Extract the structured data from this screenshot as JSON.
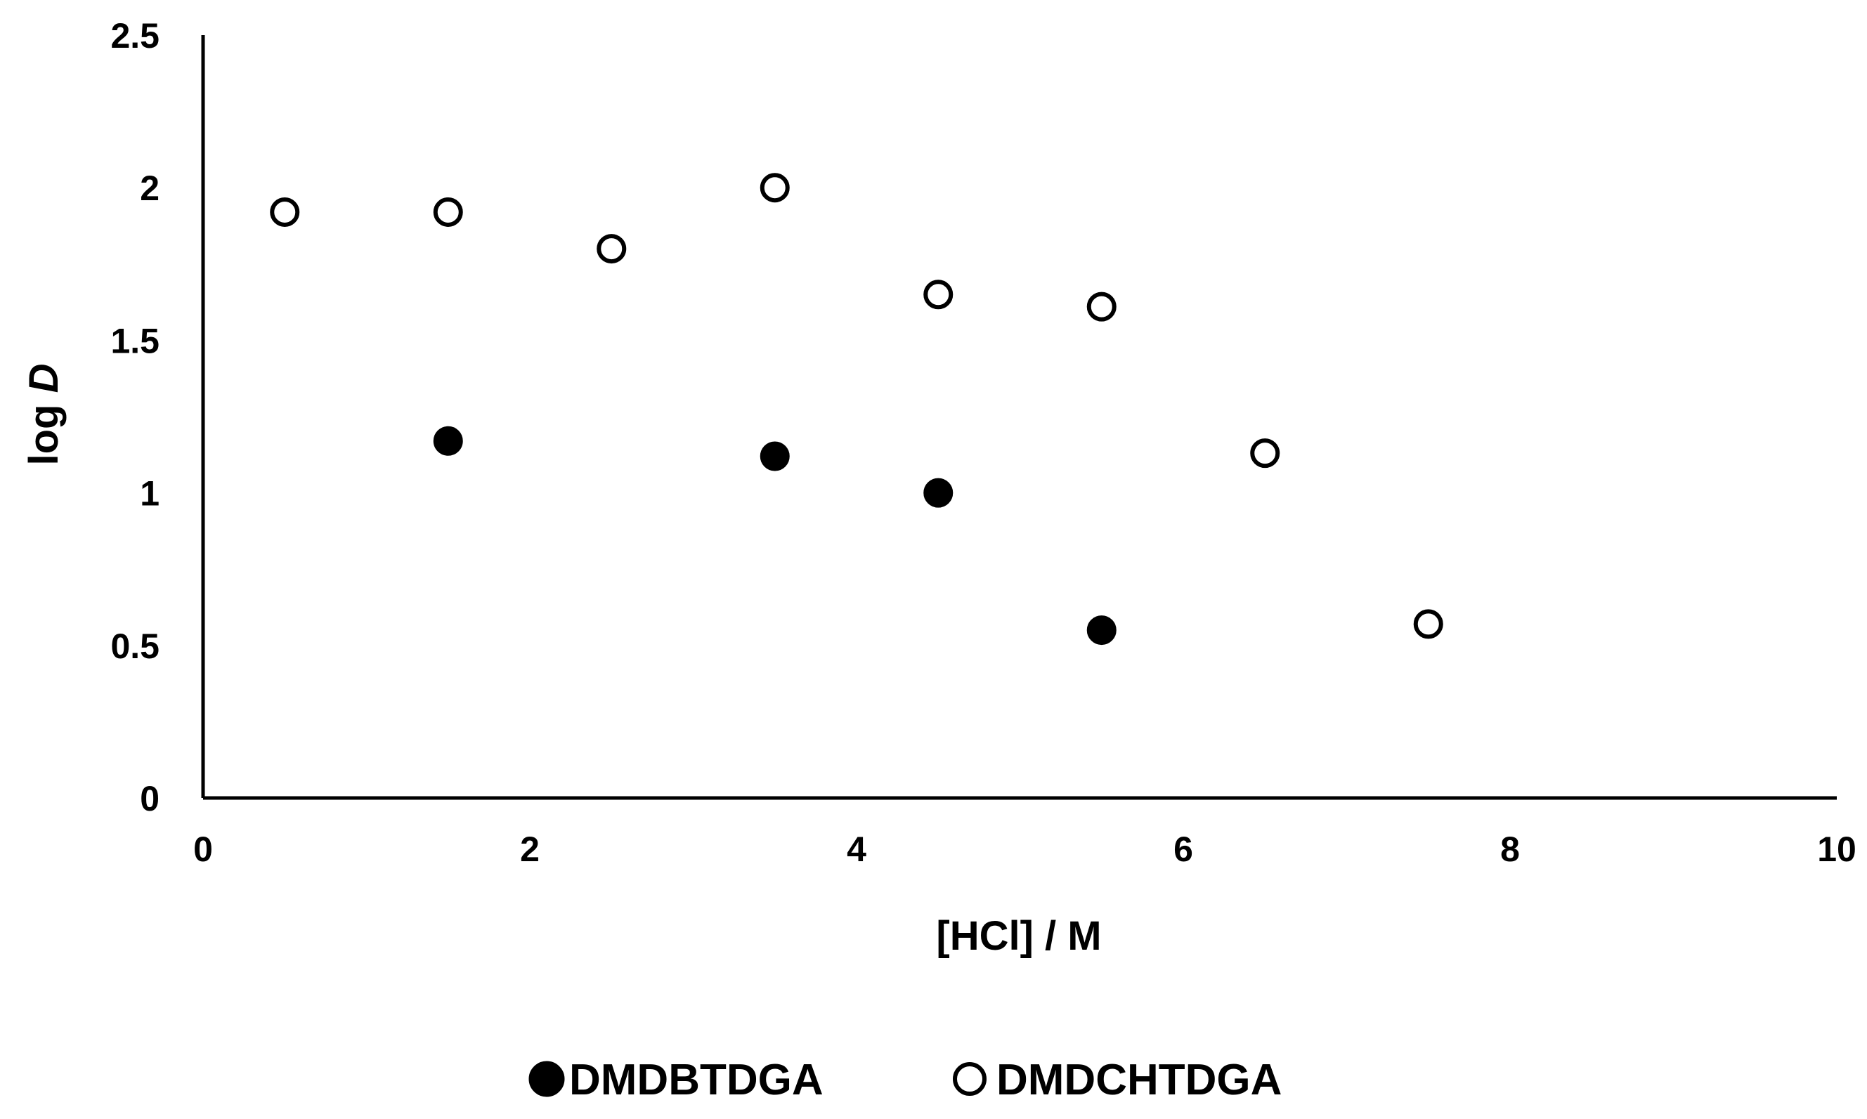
{
  "chart_data": {
    "type": "scatter",
    "title": "",
    "xlabel": "[HCl] / M",
    "ylabel_prefix": "log ",
    "ylabel_italic": "D",
    "xlim": [
      0,
      10
    ],
    "ylim": [
      0,
      2.5
    ],
    "xticks": [
      0,
      2,
      4,
      6,
      8,
      10
    ],
    "xtick_labels": [
      "0",
      "2",
      "4",
      "6",
      "8",
      "10"
    ],
    "yticks": [
      0,
      0.5,
      1,
      1.5,
      2,
      2.5
    ],
    "ytick_labels": [
      "0",
      "0.5",
      "1",
      "1.5",
      "2",
      "2.5"
    ],
    "grid": false,
    "legend_position": "bottom",
    "series": [
      {
        "name": "DMDBTDGA",
        "marker": "filled-circle",
        "color": "#000000",
        "x": [
          1.5,
          3.5,
          4.5,
          5.5
        ],
        "y": [
          1.17,
          1.12,
          1.0,
          0.55
        ]
      },
      {
        "name": "DMDCHTDGA",
        "marker": "open-circle",
        "color": "#000000",
        "x": [
          0.5,
          1.5,
          2.5,
          3.5,
          4.5,
          5.5,
          6.5,
          7.5
        ],
        "y": [
          1.92,
          1.92,
          1.8,
          2.0,
          1.65,
          1.61,
          1.13,
          0.57
        ]
      }
    ]
  }
}
